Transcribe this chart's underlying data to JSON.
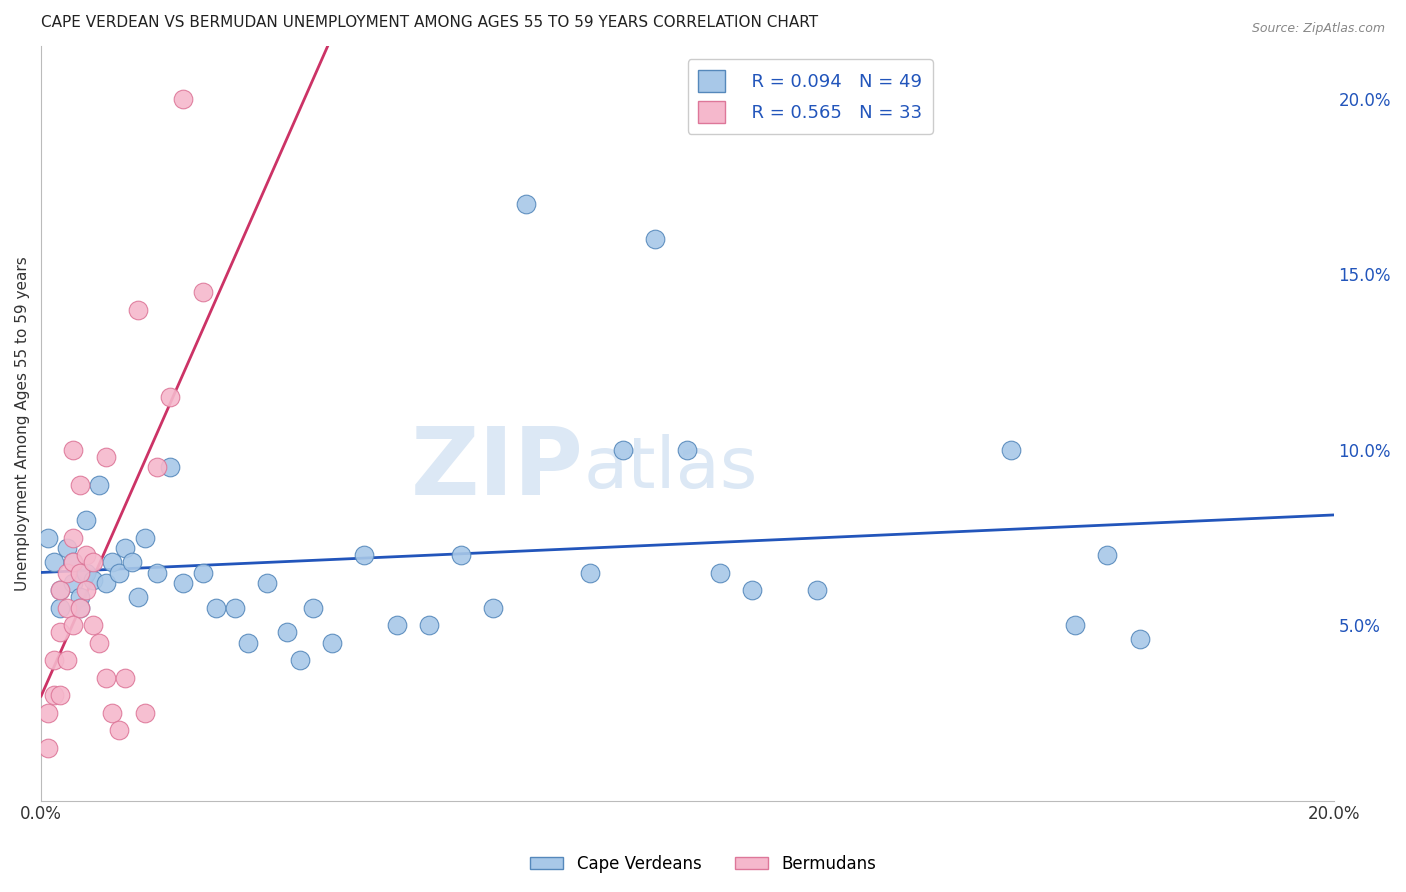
{
  "title": "CAPE VERDEAN VS BERMUDAN UNEMPLOYMENT AMONG AGES 55 TO 59 YEARS CORRELATION CHART",
  "source": "Source: ZipAtlas.com",
  "ylabel": "Unemployment Among Ages 55 to 59 years",
  "xlim": [
    0.0,
    0.2
  ],
  "ylim": [
    0.0,
    0.215
  ],
  "xticks": [
    0.0,
    0.04,
    0.08,
    0.12,
    0.16,
    0.2
  ],
  "yticks": [
    0.05,
    0.1,
    0.15,
    0.2
  ],
  "background_color": "#ffffff",
  "grid_color": "#cccccc",
  "cape_verdean_color": "#a8c8e8",
  "bermudan_color": "#f5b8cc",
  "cape_verdean_edge": "#5588bb",
  "bermudan_edge": "#dd7799",
  "trend_blue": "#2255bb",
  "trend_pink": "#cc3366",
  "R_cape": 0.094,
  "N_cape": 49,
  "R_bermuda": 0.565,
  "N_bermuda": 33,
  "cape_verdean_x": [
    0.001,
    0.002,
    0.003,
    0.003,
    0.004,
    0.005,
    0.005,
    0.006,
    0.006,
    0.007,
    0.007,
    0.008,
    0.009,
    0.01,
    0.011,
    0.012,
    0.013,
    0.014,
    0.015,
    0.016,
    0.018,
    0.02,
    0.022,
    0.025,
    0.027,
    0.03,
    0.032,
    0.035,
    0.038,
    0.04,
    0.042,
    0.045,
    0.05,
    0.055,
    0.06,
    0.065,
    0.07,
    0.075,
    0.085,
    0.09,
    0.095,
    0.1,
    0.105,
    0.11,
    0.12,
    0.15,
    0.16,
    0.165,
    0.17
  ],
  "cape_verdean_y": [
    0.075,
    0.068,
    0.06,
    0.055,
    0.072,
    0.068,
    0.062,
    0.058,
    0.055,
    0.08,
    0.065,
    0.063,
    0.09,
    0.062,
    0.068,
    0.065,
    0.072,
    0.068,
    0.058,
    0.075,
    0.065,
    0.095,
    0.062,
    0.065,
    0.055,
    0.055,
    0.045,
    0.062,
    0.048,
    0.04,
    0.055,
    0.045,
    0.07,
    0.05,
    0.05,
    0.07,
    0.055,
    0.17,
    0.065,
    0.1,
    0.16,
    0.1,
    0.065,
    0.06,
    0.06,
    0.1,
    0.05,
    0.07,
    0.046
  ],
  "bermudan_x": [
    0.001,
    0.001,
    0.002,
    0.002,
    0.003,
    0.003,
    0.003,
    0.004,
    0.004,
    0.004,
    0.005,
    0.005,
    0.005,
    0.005,
    0.006,
    0.006,
    0.006,
    0.007,
    0.007,
    0.008,
    0.008,
    0.009,
    0.01,
    0.01,
    0.011,
    0.012,
    0.013,
    0.015,
    0.016,
    0.018,
    0.02,
    0.022,
    0.025
  ],
  "bermudan_y": [
    0.015,
    0.025,
    0.03,
    0.04,
    0.03,
    0.048,
    0.06,
    0.04,
    0.055,
    0.065,
    0.05,
    0.075,
    0.068,
    0.1,
    0.055,
    0.065,
    0.09,
    0.06,
    0.07,
    0.068,
    0.05,
    0.045,
    0.035,
    0.098,
    0.025,
    0.02,
    0.035,
    0.14,
    0.025,
    0.095,
    0.115,
    0.2,
    0.145
  ]
}
